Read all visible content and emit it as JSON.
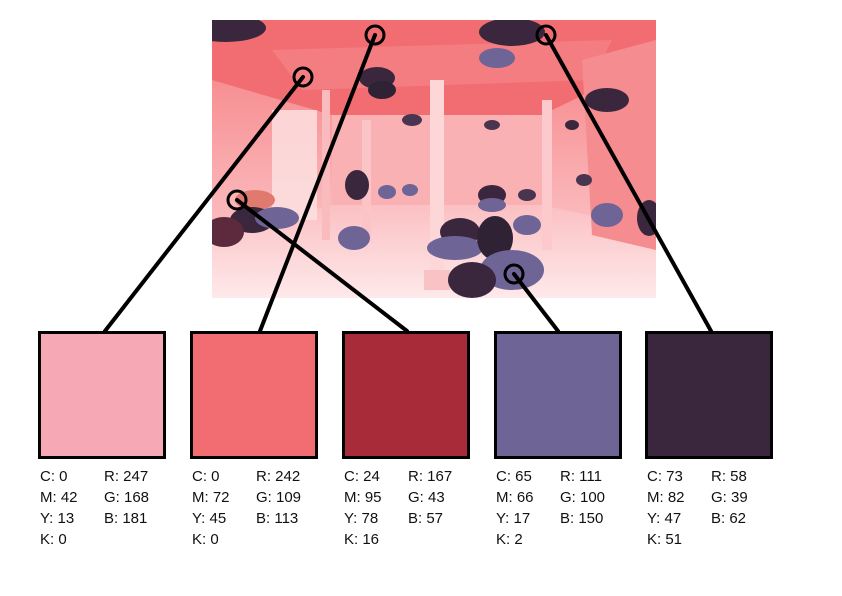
{
  "swatches": [
    {
      "color": "#F7A8B5",
      "cmyk": [
        "C: 0",
        "M: 42",
        "Y: 13",
        "K: 0"
      ],
      "rgb": [
        "R: 247",
        "G: 168",
        "B: 181"
      ]
    },
    {
      "color": "#F26D71",
      "cmyk": [
        "C: 0",
        "M: 72",
        "Y: 45",
        "K: 0"
      ],
      "rgb": [
        "R: 242",
        "G: 109",
        "B: 113"
      ]
    },
    {
      "color": "#A72B39",
      "cmyk": [
        "C: 24",
        "M: 95",
        "Y: 78",
        "K: 16"
      ],
      "rgb": [
        "R: 167",
        "G: 43",
        "B: 57"
      ]
    },
    {
      "color": "#6F6496",
      "cmyk": [
        "C: 65",
        "M: 66",
        "Y: 17",
        "K: 2"
      ],
      "rgb": [
        "R: 111",
        "G: 100",
        "B: 150"
      ]
    },
    {
      "color": "#3A273E",
      "cmyk": [
        "C: 73",
        "M: 82",
        "Y: 47",
        "K: 51"
      ],
      "rgb": [
        "R: 58",
        "G: 39",
        "B: 62"
      ]
    }
  ]
}
